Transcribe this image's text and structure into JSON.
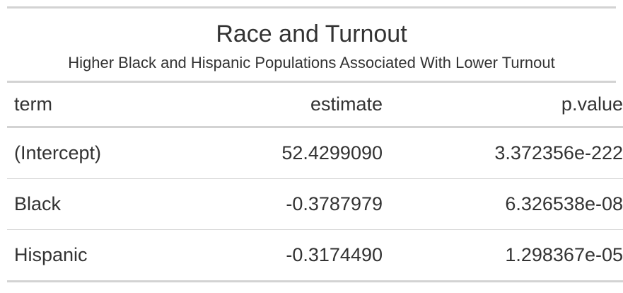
{
  "table": {
    "title": "Race and Turnout",
    "subtitle": "Higher Black and Hispanic Populations Associated With Lower Turnout",
    "columns": [
      "term",
      "estimate",
      "p.value"
    ],
    "rows": [
      [
        "(Intercept)",
        "52.4299090",
        "3.372356e-222"
      ],
      [
        "Black",
        "-0.3787979",
        "6.326538e-08"
      ],
      [
        "Hispanic",
        "-0.3174490",
        "1.298367e-05"
      ]
    ]
  }
}
